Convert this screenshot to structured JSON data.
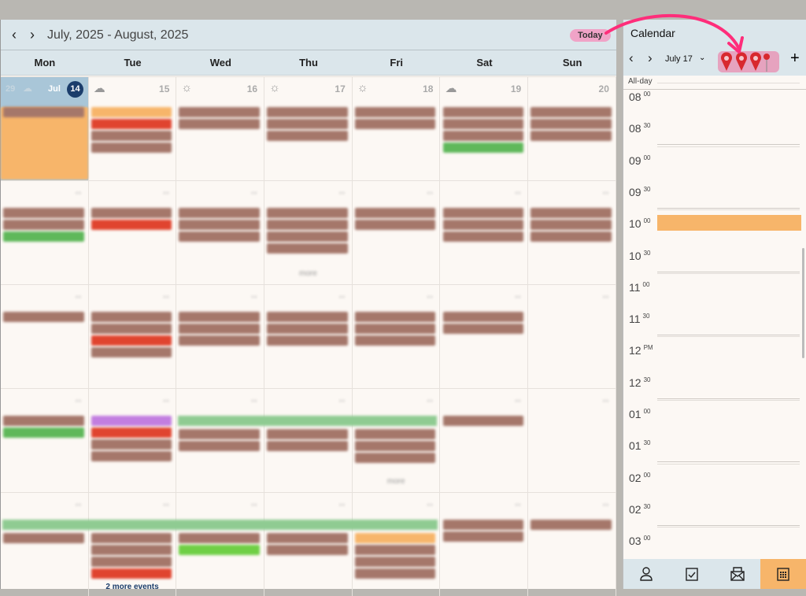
{
  "header": {
    "range": "July, 2025 - August, 2025",
    "today": "Today"
  },
  "days": [
    "Mon",
    "Tue",
    "Wed",
    "Thu",
    "Fri",
    "Sat",
    "Sun"
  ],
  "first_week": {
    "week_no": "29",
    "month": "Jul",
    "today_day": "14",
    "days": [
      "15",
      "16",
      "17",
      "18",
      "19",
      "20"
    ],
    "weather": [
      "partly-cloudy-icon",
      "sun-icon",
      "sun-icon",
      "sun-icon",
      "partly-cloudy-icon",
      "",
      ""
    ]
  },
  "colors": {
    "brown": "#a5776a",
    "orange": "#f7b56a",
    "red": "#e0442f",
    "green": "#5fb85a",
    "lime": "#6fcf45",
    "purple": "#c27ee0",
    "span_green": "#8fcb92",
    "today": "#1b3d6b",
    "accent": "#f7b56a",
    "annotation": "#ff2d7a"
  },
  "weeks": [
    {
      "cells": [
        [
          "orange-big"
        ],
        [
          "orange",
          "red",
          "brown",
          "brown"
        ],
        [
          "brown",
          "brown"
        ],
        [
          "brown",
          "brown",
          "brown"
        ],
        [
          "brown",
          "brown"
        ],
        [
          "brown",
          "brown",
          "brown",
          "green"
        ],
        [
          "brown",
          "brown",
          "brown"
        ]
      ]
    },
    {
      "cells": [
        [
          "brown",
          "brown",
          "green"
        ],
        [
          "brown",
          "red"
        ],
        [
          "brown",
          "brown",
          "brown"
        ],
        [
          "brown",
          "brown",
          "brown",
          "brown"
        ],
        [
          "brown",
          "brown"
        ],
        [
          "brown",
          "brown",
          "brown"
        ],
        [
          "brown",
          "brown",
          "brown"
        ]
      ],
      "more": {
        "3": "more"
      }
    },
    {
      "cells": [
        [
          "brown"
        ],
        [
          "brown",
          "brown",
          "red",
          "brown"
        ],
        [
          "brown",
          "brown",
          "brown"
        ],
        [
          "brown",
          "brown",
          "brown"
        ],
        [
          "brown",
          "brown",
          "brown"
        ],
        [
          "brown",
          "brown"
        ],
        []
      ]
    },
    {
      "cells": [
        [
          "brown",
          "green"
        ],
        [
          "purple",
          "red",
          "brown",
          "brown"
        ],
        [
          "span",
          "brown",
          "brown"
        ],
        [
          "span",
          "brown",
          "brown"
        ],
        [
          "span",
          "brown",
          "brown",
          "brown"
        ],
        [
          "brown"
        ],
        []
      ],
      "span": [
        2,
        4
      ],
      "more": {
        "4": "more"
      }
    },
    {
      "cells": [
        [
          "span",
          "brown"
        ],
        [
          "span",
          "brown",
          "brown",
          "brown",
          "red"
        ],
        [
          "span",
          "brown",
          "lime"
        ],
        [
          "span",
          "brown",
          "brown"
        ],
        [
          "span",
          "orange",
          "brown",
          "brown",
          "brown"
        ],
        [
          "brown",
          "brown"
        ],
        [
          "brown"
        ]
      ],
      "span": [
        0,
        4
      ],
      "more": {
        "1": "2 more events"
      }
    }
  ],
  "panel": {
    "title": "Calendar",
    "date": "July 17",
    "all_day": "All-day",
    "times": [
      [
        "08",
        "00"
      ],
      [
        "08",
        "30"
      ],
      [
        "09",
        "00"
      ],
      [
        "09",
        "30"
      ],
      [
        "10",
        "00"
      ],
      [
        "10",
        "30"
      ],
      [
        "11",
        "00"
      ],
      [
        "11",
        "30"
      ],
      [
        "12",
        "PM"
      ],
      [
        "12",
        "30"
      ],
      [
        "01",
        "00"
      ],
      [
        "01",
        "30"
      ],
      [
        "02",
        "00"
      ],
      [
        "02",
        "30"
      ],
      [
        "03",
        "00"
      ]
    ],
    "event_at": "10:00",
    "tabs": [
      "contacts-icon",
      "tasks-icon",
      "mail-icon",
      "calendar-icon"
    ],
    "active_tab": 3
  }
}
